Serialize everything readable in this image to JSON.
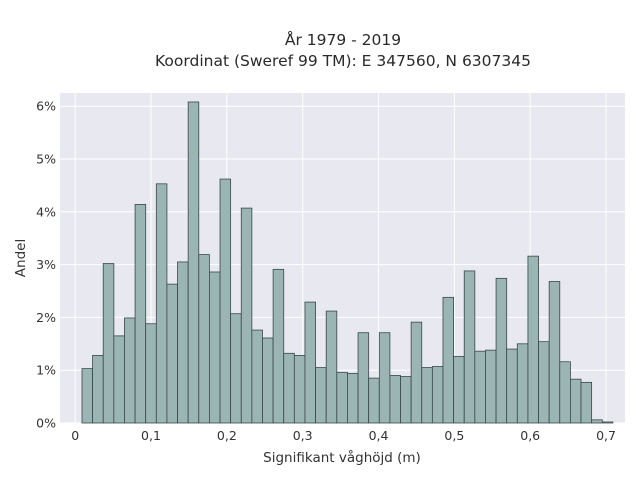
{
  "chart_data": {
    "type": "bar",
    "title": "År 1979 - 2019",
    "subtitle": "Koordinat (Sweref 99 TM): E 347560, N 6307345",
    "xlabel": "Signifikant våghöjd (m)",
    "ylabel": "Andel",
    "xlim": [
      -0.02,
      0.725
    ],
    "ylim": [
      0,
      6.25
    ],
    "x_ticks": [
      0,
      0.1,
      0.2,
      0.3,
      0.4,
      0.5,
      0.6,
      0.7
    ],
    "x_tick_labels": [
      "0",
      "0,1",
      "0,2",
      "0,3",
      "0,4",
      "0,5",
      "0,6",
      "0,7"
    ],
    "y_ticks": [
      0,
      1,
      2,
      3,
      4,
      5,
      6
    ],
    "y_tick_labels": [
      "0%",
      "1%",
      "2%",
      "3%",
      "4%",
      "5%",
      "6%"
    ],
    "bin_width": 0.014,
    "bin_start": 0.009,
    "values": [
      1.03,
      1.28,
      3.02,
      1.65,
      1.99,
      4.14,
      1.88,
      4.53,
      2.63,
      3.05,
      6.08,
      3.19,
      2.86,
      4.62,
      2.07,
      4.07,
      1.76,
      1.61,
      2.91,
      1.32,
      1.28,
      2.29,
      1.05,
      2.12,
      0.96,
      0.94,
      1.71,
      0.85,
      1.71,
      0.9,
      0.88,
      1.91,
      1.05,
      1.07,
      2.38,
      1.26,
      2.88,
      1.36,
      1.38,
      2.74,
      1.4,
      1.5,
      3.16,
      1.54,
      2.68,
      1.16,
      0.83,
      0.77,
      0.06,
      0.02
    ],
    "grid": true,
    "background": "#e8e8f0",
    "bar_color": "#9bb5b5",
    "edge_color": "#3a4848"
  }
}
